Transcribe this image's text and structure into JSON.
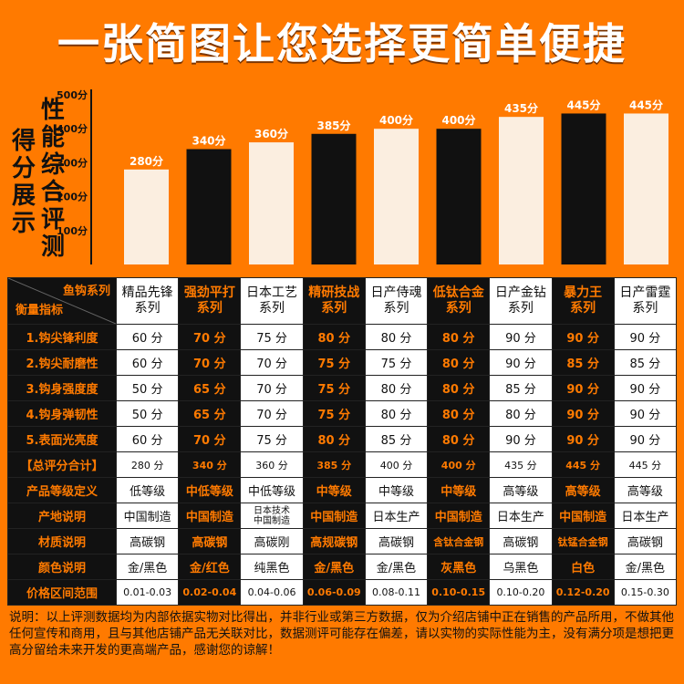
{
  "title": "一张简图让您选择更简单便捷",
  "chart_label_left": "得分展示",
  "chart_label_right": "性能综合评测",
  "colors": {
    "background": "#ff7a00",
    "dark_bar": "#111111",
    "light_bar": "#fbeee0",
    "accent": "#ff7a00"
  },
  "chart_data": {
    "type": "bar",
    "categories": [
      "精品先锋系列",
      "强劲平打系列",
      "日本工艺系列",
      "精研技战系列",
      "日产侍魂系列",
      "低钛合金系列",
      "日产金钻系列",
      "暴力王系列",
      "日产雷霆系列"
    ],
    "values": [
      280,
      340,
      360,
      385,
      400,
      400,
      435,
      445,
      445
    ],
    "data_labels": [
      "280分",
      "340分",
      "360分",
      "385分",
      "400分",
      "400分",
      "435分",
      "445分",
      "445分"
    ],
    "bar_tones": [
      "light",
      "dark",
      "light",
      "dark",
      "light",
      "dark",
      "light",
      "dark",
      "light"
    ],
    "ylim": [
      0,
      500
    ],
    "yticks": [
      100,
      200,
      300,
      400,
      500
    ],
    "ytick_labels": [
      "100分",
      "200分",
      "300分",
      "400分",
      "500分"
    ],
    "grid": false
  },
  "table": {
    "corner_top": "鱼钩系列",
    "corner_bottom": "衡量指标",
    "series": [
      {
        "line1": "精品先锋",
        "line2": "系列",
        "tone": "light"
      },
      {
        "line1": "强劲平打",
        "line2": "系列",
        "tone": "dark"
      },
      {
        "line1": "日本工艺",
        "line2": "系列",
        "tone": "light"
      },
      {
        "line1": "精研技战",
        "line2": "系列",
        "tone": "dark"
      },
      {
        "line1": "日产侍魂",
        "line2": "系列",
        "tone": "light"
      },
      {
        "line1": "低钛合金",
        "line2": "系列",
        "tone": "dark"
      },
      {
        "line1": "日产金钻",
        "line2": "系列",
        "tone": "light"
      },
      {
        "line1": "暴力王",
        "line2": "系列",
        "tone": "dark"
      },
      {
        "line1": "日产雷霆",
        "line2": "系列",
        "tone": "light"
      }
    ],
    "rows": [
      {
        "label": "1.钩尖锋利度",
        "cells": [
          "60 分",
          "70 分",
          "75 分",
          "80 分",
          "80 分",
          "80 分",
          "90 分",
          "90 分",
          "90 分"
        ]
      },
      {
        "label": "2.钩尖耐磨性",
        "cells": [
          "60 分",
          "70 分",
          "70 分",
          "75 分",
          "75 分",
          "80 分",
          "90 分",
          "85 分",
          "85 分"
        ]
      },
      {
        "label": "3.钩身强度度",
        "cells": [
          "50 分",
          "65 分",
          "70 分",
          "75 分",
          "80 分",
          "80 分",
          "85 分",
          "90 分",
          "90 分"
        ]
      },
      {
        "label": "4.钩身弹韧性",
        "cells": [
          "50 分",
          "65 分",
          "70 分",
          "75 分",
          "80 分",
          "80 分",
          "80 分",
          "90 分",
          "90 分"
        ]
      },
      {
        "label": "5.表面光亮度",
        "cells": [
          "60 分",
          "70 分",
          "75 分",
          "80 分",
          "85 分",
          "80 分",
          "90 分",
          "90 分",
          "90 分"
        ]
      },
      {
        "label": "【总评分合计】",
        "cells": [
          "280 分",
          "340 分",
          "360 分",
          "385 分",
          "400 分",
          "400 分",
          "435 分",
          "445 分",
          "445 分"
        ]
      },
      {
        "label": "产品等级定义",
        "cells": [
          "低等级",
          "中低等级",
          "中低等级",
          "中等级",
          "中等级",
          "中等级",
          "高等级",
          "高等级",
          "高等级"
        ]
      },
      {
        "label": "产地说明",
        "cells": [
          "中国制造",
          "中国制造",
          "日本技术\n中国制造",
          "中国制造",
          "日本生产",
          "中国制造",
          "日本生产",
          "中国制造",
          "日本生产"
        ]
      },
      {
        "label": "材质说明",
        "cells": [
          "高碳钢",
          "高碳钢",
          "高碳刚",
          "高规碳钢",
          "高碳钢",
          "含钛合金钢",
          "高碳钢",
          "钛锰合金钢",
          "高碳钢"
        ]
      },
      {
        "label": "颜色说明",
        "cells": [
          "金/黑色",
          "金/红色",
          "纯黑色",
          "金/黑色",
          "金/黑色",
          "灰黑色",
          "乌黑色",
          "白色",
          "金/黑色"
        ]
      },
      {
        "label": "价格区间范围",
        "cells": [
          "0.01-0.03",
          "0.02-0.04",
          "0.04-0.06",
          "0.06-0.09",
          "0.08-0.11",
          "0.10-0.15",
          "0.10-0.20",
          "0.12-0.20",
          "0.15-0.30"
        ]
      }
    ]
  },
  "note": "说明：以上评测数据均为内部依据实物对比得出，并非行业或第三方数据，仅为介绍店铺中正在销售的产品所用，不做其他任何宣传和商用，且与其他店铺产品无关联对比，数据测评可能存在偏差，请以实物的实际性能为主，没有满分项是想把更高分留给未来开发的更高端产品，感谢您的谅解！"
}
